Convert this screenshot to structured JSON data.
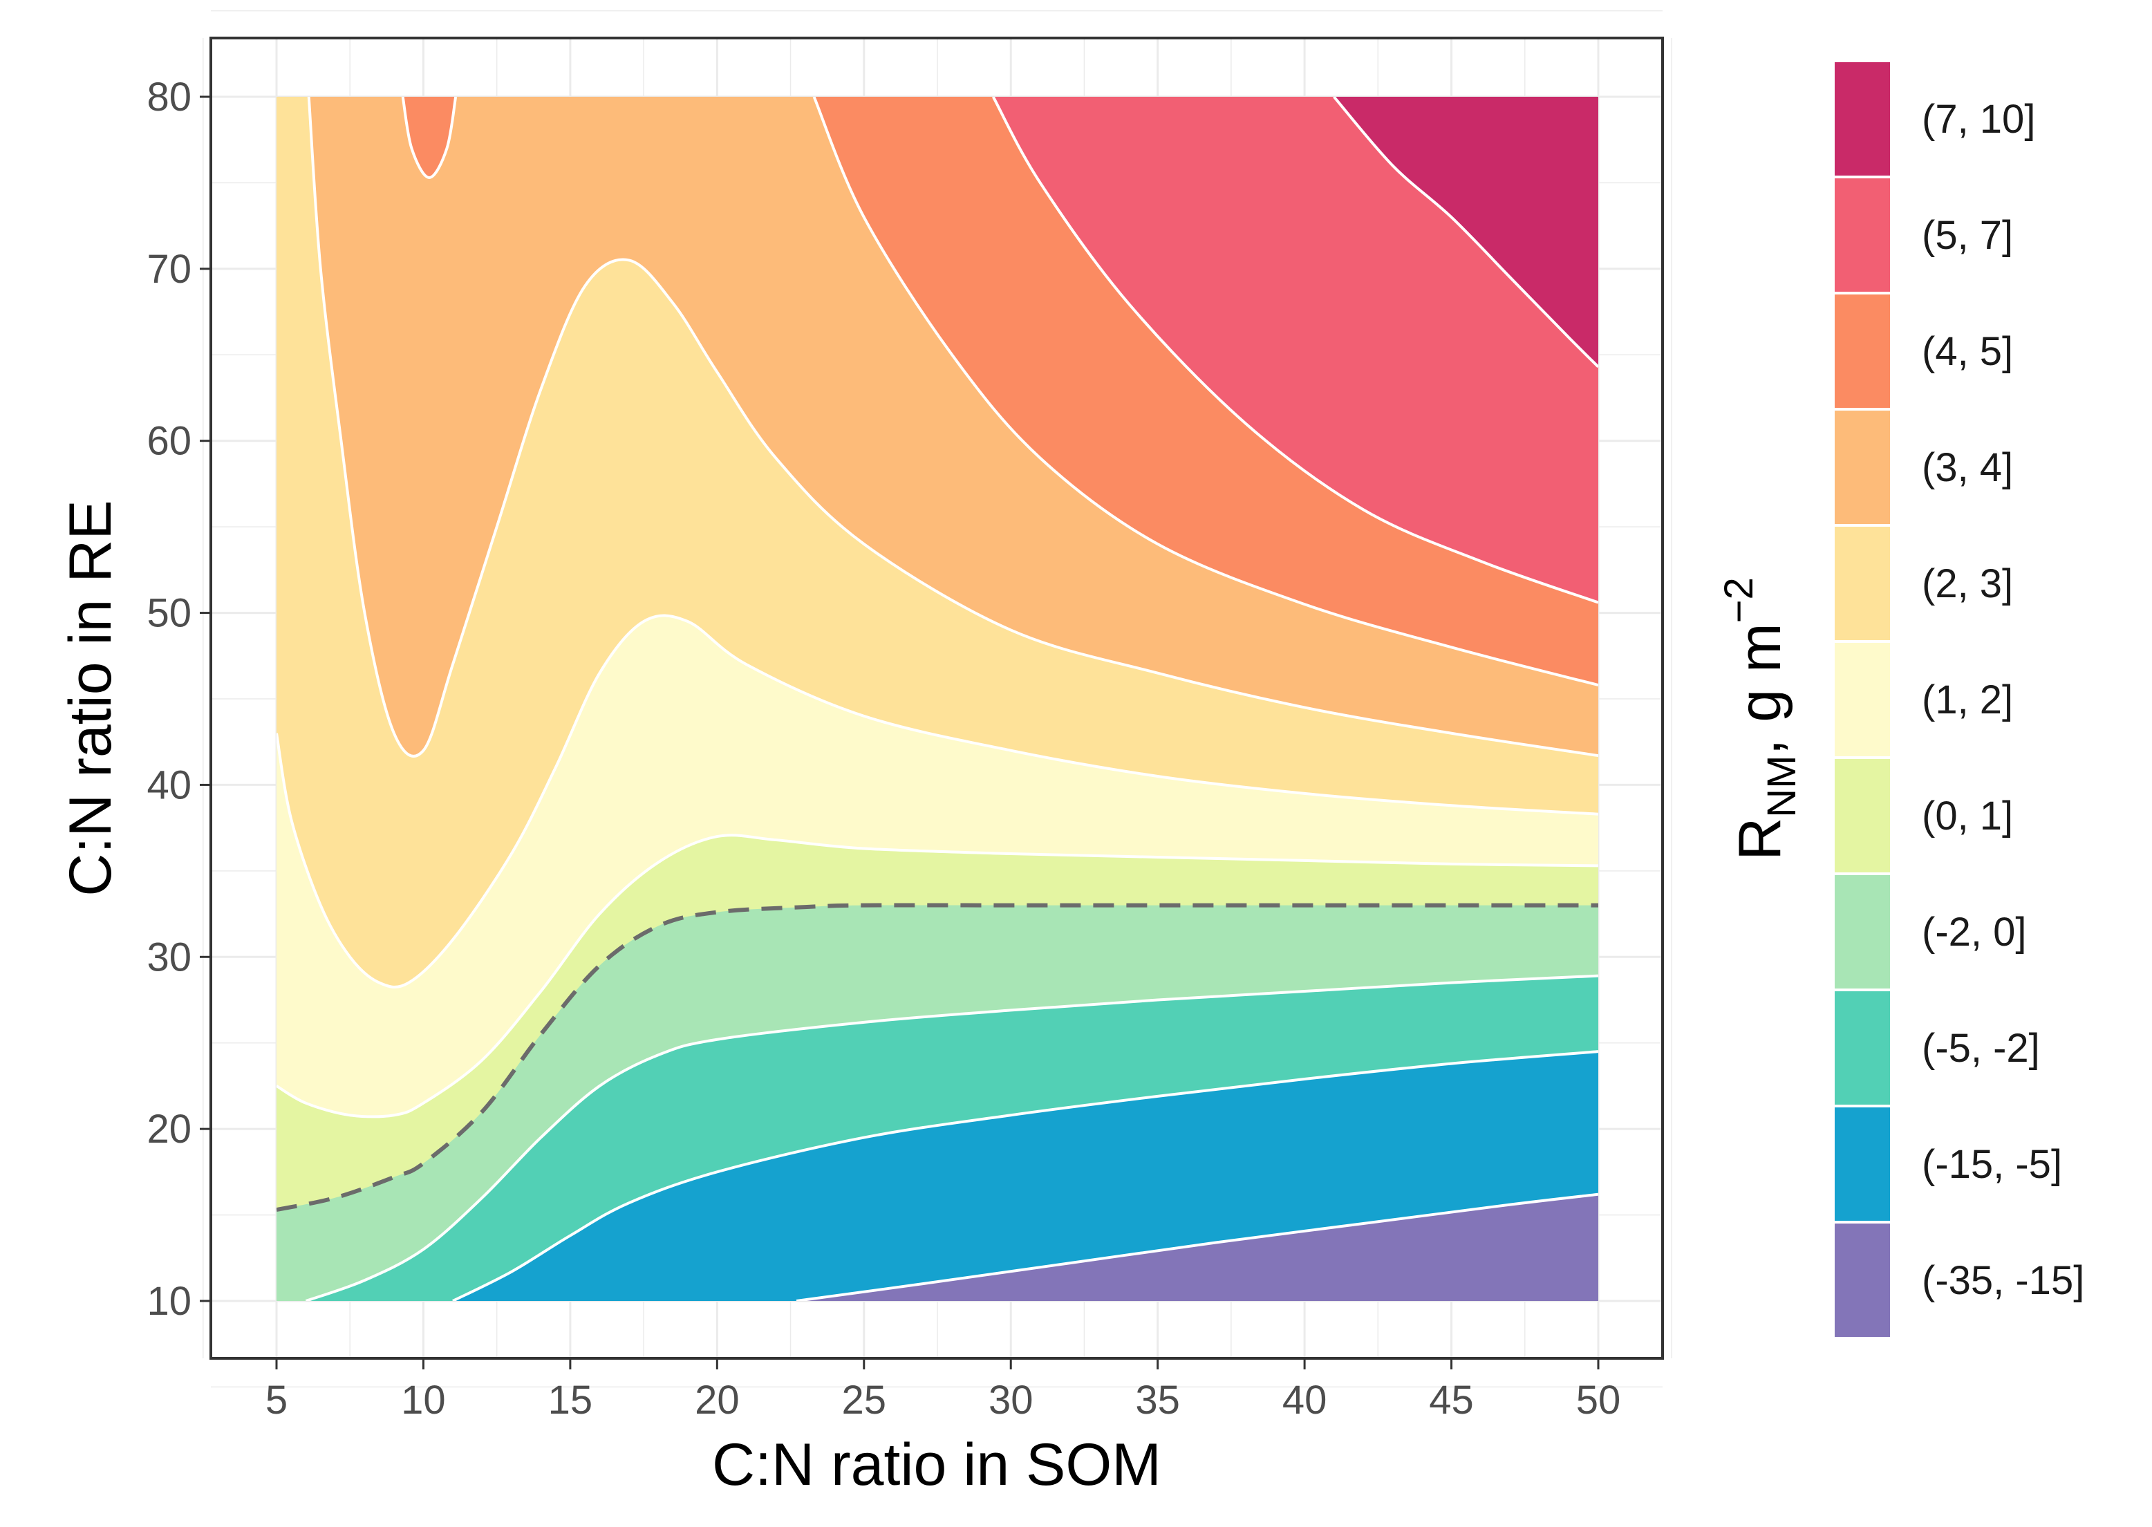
{
  "chart_data": {
    "type": "contour",
    "xlabel": "C:N ratio in SOM",
    "ylabel": "C:N ratio in RE",
    "xlim": [
      5,
      50
    ],
    "ylim": [
      10,
      80
    ],
    "x_ticks": [
      5,
      10,
      15,
      20,
      25,
      30,
      35,
      40,
      45,
      50
    ],
    "y_ticks": [
      10,
      20,
      30,
      40,
      50,
      60,
      70,
      80
    ],
    "grid": true,
    "legend_position": "right",
    "legend_title": {
      "main": "R",
      "subscript": "NM",
      "unit": ", g m",
      "superscript": "−2"
    },
    "levels": [
      {
        "label": "(7, 10]",
        "color": "#C92A68"
      },
      {
        "label": "(5, 7]",
        "color": "#F25F73"
      },
      {
        "label": "(4, 5]",
        "color": "#FB8B62"
      },
      {
        "label": "(3, 4]",
        "color": "#FDBB79"
      },
      {
        "label": "(2, 3]",
        "color": "#FEE299"
      },
      {
        "label": "(1, 2]",
        "color": "#FEFACB"
      },
      {
        "label": "(0, 1]",
        "color": "#E4F5A2"
      },
      {
        "label": "(-2, 0]",
        "color": "#A8E5B5"
      },
      {
        "label": "(-5, -2]",
        "color": "#52D0B5"
      },
      {
        "label": "(-15, -5]",
        "color": "#15A2CF"
      },
      {
        "label": "(-35, -15]",
        "color": "#8375B8"
      }
    ],
    "zero_contour_style": "dashed",
    "contour_boundaries": [
      {
        "between": "(0, 1] / (1, 2]",
        "points": [
          [
            5,
            22.5
          ],
          [
            6,
            21.5
          ],
          [
            7.5,
            20.8
          ],
          [
            9,
            20.8
          ],
          [
            10,
            21.5
          ],
          [
            12,
            24
          ],
          [
            14,
            28
          ],
          [
            16,
            32.5
          ],
          [
            18,
            35.5
          ],
          [
            20,
            37
          ],
          [
            22,
            36.8
          ],
          [
            25,
            36.3
          ],
          [
            30,
            36
          ],
          [
            35,
            35.8
          ],
          [
            40,
            35.6
          ],
          [
            45,
            35.4
          ],
          [
            50,
            35.3
          ]
        ]
      },
      {
        "between": "(1, 2] / (2, 3]",
        "points": [
          [
            5,
            43
          ],
          [
            5.5,
            38
          ],
          [
            6.5,
            33
          ],
          [
            7.5,
            30
          ],
          [
            8.5,
            28.5
          ],
          [
            9.5,
            28.5
          ],
          [
            11,
            31
          ],
          [
            13,
            36
          ],
          [
            14.5,
            41
          ],
          [
            16,
            46.5
          ],
          [
            17.5,
            49.5
          ],
          [
            19,
            49.5
          ],
          [
            21,
            47
          ],
          [
            25,
            44
          ],
          [
            30,
            42
          ],
          [
            35,
            40.5
          ],
          [
            40,
            39.5
          ],
          [
            45,
            38.8
          ],
          [
            50,
            38.3
          ]
        ]
      },
      {
        "between": "(2, 3] / (3, 4]",
        "points": [
          [
            6.1,
            80
          ],
          [
            6.5,
            70
          ],
          [
            7.2,
            60
          ],
          [
            8,
            50
          ],
          [
            9,
            43
          ],
          [
            10,
            42
          ],
          [
            11,
            47
          ],
          [
            12.5,
            55
          ],
          [
            14,
            63
          ],
          [
            15.5,
            69
          ],
          [
            17,
            70.5
          ],
          [
            18.5,
            68
          ],
          [
            20,
            64
          ],
          [
            22,
            59
          ],
          [
            25,
            54
          ],
          [
            30,
            49
          ],
          [
            35,
            46.5
          ],
          [
            40,
            44.5
          ],
          [
            45,
            43
          ],
          [
            50,
            41.7
          ]
        ]
      },
      {
        "between": "(3, 4] / (4, 5] (left lobe)",
        "points": [
          [
            9.3,
            80
          ],
          [
            9.6,
            77
          ],
          [
            10.2,
            75.3
          ],
          [
            10.8,
            77
          ],
          [
            11.1,
            80
          ]
        ]
      },
      {
        "between": "(3, 4] / (4, 5]",
        "points": [
          [
            23.3,
            80
          ],
          [
            25,
            73
          ],
          [
            28,
            65
          ],
          [
            31,
            59
          ],
          [
            35,
            54
          ],
          [
            40,
            50.5
          ],
          [
            45,
            48
          ],
          [
            50,
            45.8
          ]
        ]
      },
      {
        "between": "(4, 5] / (5, 7]",
        "points": [
          [
            29.4,
            80
          ],
          [
            31,
            75
          ],
          [
            34,
            68
          ],
          [
            38,
            61
          ],
          [
            42,
            56
          ],
          [
            46,
            53
          ],
          [
            50,
            50.6
          ]
        ]
      },
      {
        "between": "(5, 7] / (7, 10]",
        "points": [
          [
            41,
            80
          ],
          [
            43,
            76
          ],
          [
            45,
            73
          ],
          [
            47,
            69.5
          ],
          [
            49,
            66
          ],
          [
            50,
            64.3
          ]
        ]
      },
      {
        "between": "(-2, 0] / (0, 1] (dashed zero line)",
        "points": [
          [
            5,
            15.3
          ],
          [
            7,
            16
          ],
          [
            9,
            17.2
          ],
          [
            10,
            18
          ],
          [
            12,
            21
          ],
          [
            14,
            25.5
          ],
          [
            16,
            29.5
          ],
          [
            18,
            31.8
          ],
          [
            20,
            32.6
          ],
          [
            23,
            32.9
          ],
          [
            25,
            33
          ],
          [
            30,
            33
          ],
          [
            35,
            33
          ],
          [
            40,
            33
          ],
          [
            45,
            33
          ],
          [
            50,
            33
          ]
        ]
      },
      {
        "between": "(-5, -2] / (-2, 0]",
        "points": [
          [
            6,
            10
          ],
          [
            8,
            11.2
          ],
          [
            10,
            13
          ],
          [
            12,
            16
          ],
          [
            14,
            19.5
          ],
          [
            16,
            22.5
          ],
          [
            18,
            24.3
          ],
          [
            20,
            25.2
          ],
          [
            25,
            26.2
          ],
          [
            30,
            26.9
          ],
          [
            35,
            27.5
          ],
          [
            40,
            28
          ],
          [
            45,
            28.5
          ],
          [
            50,
            28.9
          ]
        ]
      },
      {
        "between": "(-15, -5] / (-5, -2]",
        "points": [
          [
            11,
            10
          ],
          [
            13,
            11.7
          ],
          [
            15,
            13.8
          ],
          [
            17,
            15.7
          ],
          [
            20,
            17.5
          ],
          [
            25,
            19.5
          ],
          [
            30,
            20.8
          ],
          [
            35,
            21.9
          ],
          [
            40,
            22.9
          ],
          [
            45,
            23.8
          ],
          [
            50,
            24.5
          ]
        ]
      },
      {
        "between": "(-35, -15] / (-15, -5]",
        "points": [
          [
            22.7,
            10
          ],
          [
            27,
            11
          ],
          [
            32,
            12.2
          ],
          [
            37,
            13.4
          ],
          [
            42,
            14.5
          ],
          [
            47,
            15.6
          ],
          [
            50,
            16.2
          ]
        ]
      }
    ]
  }
}
